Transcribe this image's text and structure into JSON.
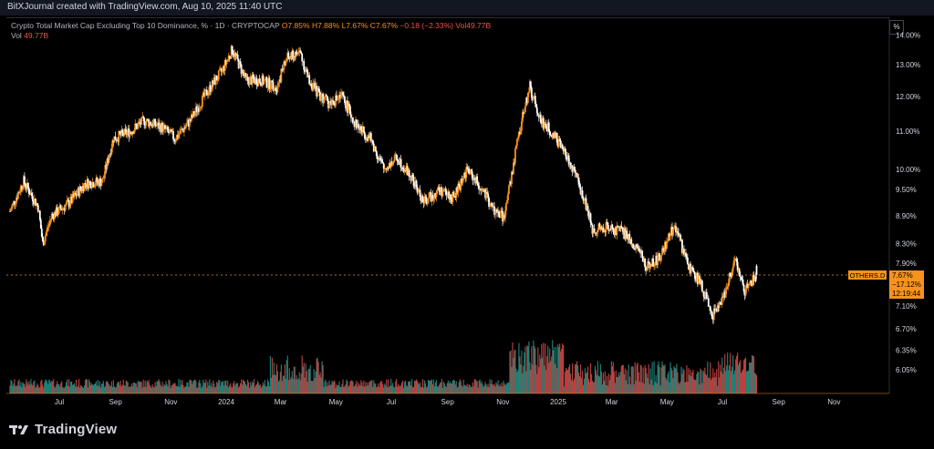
{
  "header": {
    "credit": "BitXJournal created with TradingView.com, Aug 10, 2025 11:40 UTC"
  },
  "legend": {
    "symbol": "Crypto Total Market Cap Excluding Top 10 Dominance, % · 1D · CRYPTOCAP",
    "open": "O7.85%",
    "high": "H7.88%",
    "low": "L7.67%",
    "close": "C7.67%",
    "change": "−0.18 (−2.33%)",
    "vol": "Vol49.77B",
    "vol_label": "Vol",
    "vol_value": "49.77B"
  },
  "scale_button": "%",
  "price_tag": {
    "ticker": "OTHERS.D",
    "price": "7.67%",
    "change": "−17.12%",
    "countdown": "12:19:44"
  },
  "brand": {
    "name": "TradingView"
  },
  "colors": {
    "up": "#f7931a",
    "down": "#ffffff",
    "vol_up": "#26a69a",
    "vol_down": "#ef5350",
    "tag": "#f7931a"
  },
  "chart_data": {
    "type": "candlestick",
    "title": "Crypto Total Market Cap Excluding Top 10 Dominance, % · 1D · CRYPTOCAP",
    "ylabel": "%",
    "y_scale": "log",
    "ylim": [
      5.75,
      14.5
    ],
    "y_ticks": [
      "14.00%",
      "13.00%",
      "12.00%",
      "11.00%",
      "10.00%",
      "9.50%",
      "8.90%",
      "8.30%",
      "7.90%",
      "7.10%",
      "6.70%",
      "6.35%",
      "6.05%"
    ],
    "y_tick_values": [
      14.0,
      13.0,
      12.0,
      11.0,
      10.0,
      9.5,
      8.9,
      8.3,
      7.9,
      7.1,
      6.7,
      6.35,
      6.05
    ],
    "x_ticks": [
      "Jul",
      "Sep",
      "Nov",
      "2024",
      "Mar",
      "May",
      "Jul",
      "Sep",
      "Nov",
      "2025",
      "Mar",
      "May",
      "Jul",
      "Sep",
      "Nov"
    ],
    "x_tick_dates": [
      "2023-07-01",
      "2023-09-01",
      "2023-11-01",
      "2024-01-01",
      "2024-03-01",
      "2024-05-01",
      "2024-07-01",
      "2024-09-01",
      "2024-11-01",
      "2025-01-01",
      "2025-03-01",
      "2025-05-01",
      "2025-07-01",
      "2025-09-01",
      "2025-11-01"
    ],
    "series_path": [
      [
        "2023-05-10",
        9.0
      ],
      [
        "2023-05-25",
        9.7
      ],
      [
        "2023-06-10",
        9.1
      ],
      [
        "2023-06-15",
        8.3
      ],
      [
        "2023-06-25",
        8.9
      ],
      [
        "2023-07-15",
        9.2
      ],
      [
        "2023-08-01",
        9.65
      ],
      [
        "2023-08-20",
        9.7
      ],
      [
        "2023-09-01",
        10.8
      ],
      [
        "2023-09-20",
        11.0
      ],
      [
        "2023-10-05",
        11.3
      ],
      [
        "2023-10-25",
        11.1
      ],
      [
        "2023-11-08",
        10.8
      ],
      [
        "2023-11-25",
        11.3
      ],
      [
        "2023-12-10",
        12.0
      ],
      [
        "2023-12-30",
        12.8
      ],
      [
        "2024-01-10",
        13.5
      ],
      [
        "2024-01-25",
        12.5
      ],
      [
        "2024-02-10",
        12.5
      ],
      [
        "2024-02-28",
        12.3
      ],
      [
        "2024-03-10",
        13.2
      ],
      [
        "2024-03-25",
        13.4
      ],
      [
        "2024-04-02",
        12.6
      ],
      [
        "2024-04-10",
        12.2
      ],
      [
        "2024-04-25",
        11.8
      ],
      [
        "2024-05-10",
        12.0
      ],
      [
        "2024-05-25",
        11.2
      ],
      [
        "2024-06-10",
        10.8
      ],
      [
        "2024-06-25",
        10.0
      ],
      [
        "2024-07-10",
        10.3
      ],
      [
        "2024-07-25",
        9.8
      ],
      [
        "2024-08-08",
        9.2
      ],
      [
        "2024-08-25",
        9.5
      ],
      [
        "2024-09-10",
        9.3
      ],
      [
        "2024-09-25",
        10.0
      ],
      [
        "2024-10-08",
        9.6
      ],
      [
        "2024-10-25",
        9.0
      ],
      [
        "2024-11-05",
        8.85
      ],
      [
        "2024-11-20",
        10.8
      ],
      [
        "2024-12-03",
        12.3
      ],
      [
        "2024-12-15",
        11.3
      ],
      [
        "2024-12-30",
        10.9
      ],
      [
        "2025-01-15",
        10.2
      ],
      [
        "2025-02-01",
        9.3
      ],
      [
        "2025-02-10",
        8.6
      ],
      [
        "2025-02-28",
        8.65
      ],
      [
        "2025-03-15",
        8.55
      ],
      [
        "2025-04-01",
        8.2
      ],
      [
        "2025-04-10",
        7.85
      ],
      [
        "2025-04-25",
        8.0
      ],
      [
        "2025-05-12",
        8.7
      ],
      [
        "2025-05-25",
        7.9
      ],
      [
        "2025-06-10",
        7.5
      ],
      [
        "2025-06-22",
        6.9
      ],
      [
        "2025-07-05",
        7.3
      ],
      [
        "2025-07-18",
        7.95
      ],
      [
        "2025-07-28",
        7.35
      ],
      [
        "2025-08-10",
        7.67
      ]
    ],
    "last": {
      "open": 7.85,
      "high": 7.88,
      "low": 7.67,
      "close": 7.67,
      "change": -0.18,
      "change_pct": -2.33,
      "volume": "49.77B"
    }
  }
}
